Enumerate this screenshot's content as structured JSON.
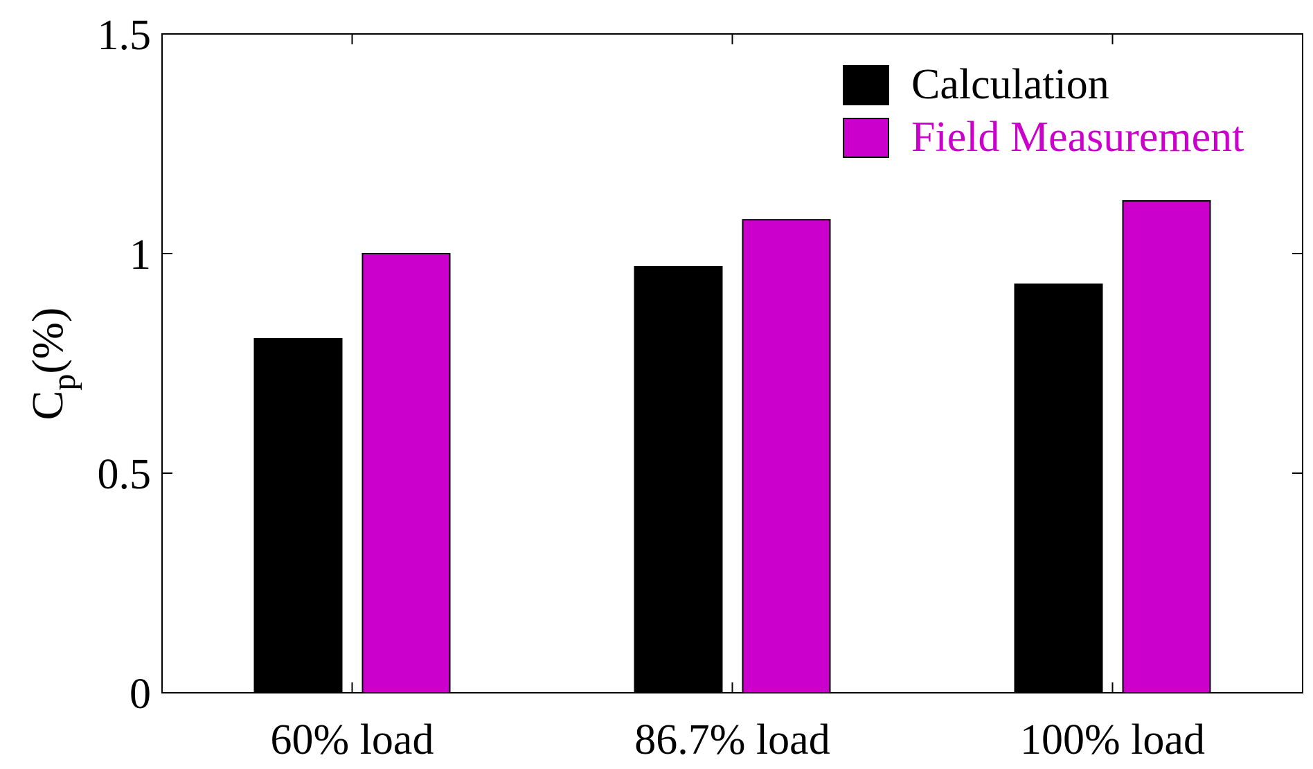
{
  "chart_data": {
    "type": "bar",
    "title": "",
    "xlabel": "",
    "ylabel": {
      "base": "C",
      "subscript": "p",
      "suffix": "(%)"
    },
    "categories": [
      "60% load",
      "86.7% load",
      "100% load"
    ],
    "series": [
      {
        "name": "Calculation",
        "color": "#000000",
        "values": [
          0.806,
          0.97,
          0.93
        ]
      },
      {
        "name": "Field Measurement",
        "color": "#cc00cc",
        "values": [
          1.0,
          1.077,
          1.12
        ]
      }
    ],
    "ylim": [
      0,
      1.5
    ],
    "yticks": [
      0,
      0.5,
      1,
      1.5
    ],
    "ytick_labels": [
      "0",
      "0.5",
      "1",
      "1.5"
    ],
    "grid": false,
    "legend_position": "top-right"
  }
}
